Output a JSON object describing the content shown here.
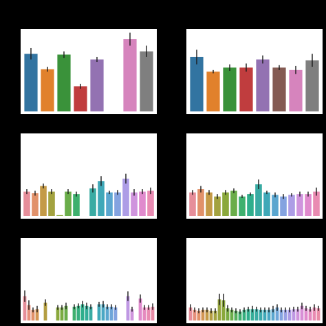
{
  "figure": {
    "background": "#000000",
    "panel_background": "#ffffff",
    "error_bar_color": "#1a1a1a"
  },
  "chart_data": [
    {
      "type": "bar",
      "grid": false,
      "ylim": [
        0,
        1
      ],
      "bars": [
        {
          "value": 0.71,
          "err": 0.07,
          "color": "#3274a1"
        },
        {
          "value": 0.52,
          "err": 0.03,
          "color": "#e1812c"
        },
        {
          "value": 0.7,
          "err": 0.04,
          "color": "#3a923a"
        },
        {
          "value": 0.31,
          "err": 0.03,
          "color": "#c03d3e"
        },
        {
          "value": 0.64,
          "err": 0.03,
          "color": "#9372b2"
        },
        {
          "value": 0.0,
          "err": 0.0,
          "color": "#845b53"
        },
        {
          "value": 0.89,
          "err": 0.08,
          "color": "#d684bd"
        },
        {
          "value": 0.74,
          "err": 0.07,
          "color": "#7f7f7f"
        }
      ]
    },
    {
      "type": "bar",
      "grid": false,
      "ylim": [
        0,
        1
      ],
      "bars": [
        {
          "value": 0.67,
          "err": 0.09,
          "color": "#3274a1"
        },
        {
          "value": 0.49,
          "err": 0.02,
          "color": "#e1812c"
        },
        {
          "value": 0.54,
          "err": 0.04,
          "color": "#3a923a"
        },
        {
          "value": 0.54,
          "err": 0.05,
          "color": "#c03d3e"
        },
        {
          "value": 0.64,
          "err": 0.05,
          "color": "#9372b2"
        },
        {
          "value": 0.54,
          "err": 0.03,
          "color": "#845b53"
        },
        {
          "value": 0.51,
          "err": 0.05,
          "color": "#d684bd"
        },
        {
          "value": 0.63,
          "err": 0.08,
          "color": "#7f7f7f"
        }
      ]
    },
    {
      "type": "bar",
      "grid": false,
      "ylim": [
        0,
        1
      ],
      "bars": [
        {
          "value": 0.3,
          "err": 0.03,
          "color": "#e68e9a"
        },
        {
          "value": 0.28,
          "err": 0.03,
          "color": "#e1916a"
        },
        {
          "value": 0.37,
          "err": 0.03,
          "color": "#c49a47"
        },
        {
          "value": 0.3,
          "err": 0.03,
          "color": "#a3a23f"
        },
        {
          "value": 0.01,
          "err": 0.0,
          "color": "#8aa83c"
        },
        {
          "value": 0.3,
          "err": 0.03,
          "color": "#6aad4a"
        },
        {
          "value": 0.27,
          "err": 0.03,
          "color": "#3eb06e"
        },
        {
          "value": 0.0,
          "err": 0.0,
          "color": "#2fae8c"
        },
        {
          "value": 0.34,
          "err": 0.05,
          "color": "#39aba3"
        },
        {
          "value": 0.43,
          "err": 0.06,
          "color": "#3fa8b8"
        },
        {
          "value": 0.29,
          "err": 0.02,
          "color": "#5aa6cf"
        },
        {
          "value": 0.29,
          "err": 0.03,
          "color": "#84a3e0"
        },
        {
          "value": 0.46,
          "err": 0.06,
          "color": "#ad9de6"
        },
        {
          "value": 0.29,
          "err": 0.04,
          "color": "#cf94dd"
        },
        {
          "value": 0.3,
          "err": 0.03,
          "color": "#e08acd"
        },
        {
          "value": 0.31,
          "err": 0.04,
          "color": "#e98bb2"
        }
      ]
    },
    {
      "type": "bar",
      "grid": false,
      "ylim": [
        0,
        1
      ],
      "bars": [
        {
          "value": 0.29,
          "err": 0.03,
          "color": "#e68e9a"
        },
        {
          "value": 0.33,
          "err": 0.04,
          "color": "#e1916a"
        },
        {
          "value": 0.29,
          "err": 0.03,
          "color": "#c49a47"
        },
        {
          "value": 0.24,
          "err": 0.03,
          "color": "#a3a23f"
        },
        {
          "value": 0.29,
          "err": 0.03,
          "color": "#8aa83c"
        },
        {
          "value": 0.31,
          "err": 0.03,
          "color": "#6aad4a"
        },
        {
          "value": 0.24,
          "err": 0.02,
          "color": "#3eb06e"
        },
        {
          "value": 0.27,
          "err": 0.02,
          "color": "#2fae8c"
        },
        {
          "value": 0.39,
          "err": 0.06,
          "color": "#39aba3"
        },
        {
          "value": 0.29,
          "err": 0.02,
          "color": "#3fa8b8"
        },
        {
          "value": 0.26,
          "err": 0.03,
          "color": "#5aa6cf"
        },
        {
          "value": 0.24,
          "err": 0.03,
          "color": "#84a3e0"
        },
        {
          "value": 0.26,
          "err": 0.02,
          "color": "#ad9de6"
        },
        {
          "value": 0.27,
          "err": 0.03,
          "color": "#cf94dd"
        },
        {
          "value": 0.27,
          "err": 0.03,
          "color": "#e08acd"
        },
        {
          "value": 0.3,
          "err": 0.05,
          "color": "#e98bb2"
        }
      ]
    },
    {
      "type": "bar",
      "grid": false,
      "ylim": [
        0,
        1
      ],
      "bars": [
        {
          "value": 0.3,
          "err": 0.07,
          "color": "#e68e9a"
        },
        {
          "value": 0.19,
          "err": 0.06,
          "color": "#e6907c"
        },
        {
          "value": 0.13,
          "err": 0.03,
          "color": "#e1916a"
        },
        {
          "value": 0.14,
          "err": 0.04,
          "color": "#d39654"
        },
        {
          "value": 0.0,
          "err": 0.0,
          "color": "#c49a47"
        },
        {
          "value": 0.22,
          "err": 0.04,
          "color": "#b49e42"
        },
        {
          "value": 0.0,
          "err": 0.0,
          "color": "#a3a23f"
        },
        {
          "value": 0.0,
          "err": 0.0,
          "color": "#97a53d"
        },
        {
          "value": 0.16,
          "err": 0.03,
          "color": "#8aa83c"
        },
        {
          "value": 0.16,
          "err": 0.03,
          "color": "#79ab42"
        },
        {
          "value": 0.18,
          "err": 0.04,
          "color": "#6aad4a"
        },
        {
          "value": 0.0,
          "err": 0.0,
          "color": "#55af5c"
        },
        {
          "value": 0.17,
          "err": 0.03,
          "color": "#3eb06e"
        },
        {
          "value": 0.18,
          "err": 0.03,
          "color": "#35af7e"
        },
        {
          "value": 0.2,
          "err": 0.04,
          "color": "#2fae8c"
        },
        {
          "value": 0.18,
          "err": 0.04,
          "color": "#33ad98"
        },
        {
          "value": 0.17,
          "err": 0.03,
          "color": "#39aba3"
        },
        {
          "value": 0.0,
          "err": 0.0,
          "color": "#3caaad"
        },
        {
          "value": 0.2,
          "err": 0.03,
          "color": "#3fa8b8"
        },
        {
          "value": 0.2,
          "err": 0.04,
          "color": "#4aa7c4"
        },
        {
          "value": 0.17,
          "err": 0.03,
          "color": "#5aa6cf"
        },
        {
          "value": 0.17,
          "err": 0.03,
          "color": "#6ea5d8"
        },
        {
          "value": 0.16,
          "err": 0.03,
          "color": "#84a3e0"
        },
        {
          "value": 0.0,
          "err": 0.0,
          "color": "#99a0e4"
        },
        {
          "value": 0.0,
          "err": 0.0,
          "color": "#ad9de6"
        },
        {
          "value": 0.3,
          "err": 0.06,
          "color": "#bf98e3"
        },
        {
          "value": 0.14,
          "err": 0.03,
          "color": "#cf94dd"
        },
        {
          "value": 0.0,
          "err": 0.0,
          "color": "#d88fd6"
        },
        {
          "value": 0.27,
          "err": 0.05,
          "color": "#e08acd"
        },
        {
          "value": 0.16,
          "err": 0.03,
          "color": "#e58abf"
        },
        {
          "value": 0.16,
          "err": 0.03,
          "color": "#e98bb2"
        },
        {
          "value": 0.17,
          "err": 0.04,
          "color": "#e98ca6"
        }
      ]
    },
    {
      "type": "bar",
      "grid": false,
      "ylim": [
        0,
        1
      ],
      "bars": [
        {
          "value": 0.16,
          "err": 0.04,
          "color": "#e68e9a"
        },
        {
          "value": 0.13,
          "err": 0.03,
          "color": "#e6907c"
        },
        {
          "value": 0.12,
          "err": 0.03,
          "color": "#e1916a"
        },
        {
          "value": 0.13,
          "err": 0.03,
          "color": "#d39654"
        },
        {
          "value": 0.13,
          "err": 0.03,
          "color": "#c49a47"
        },
        {
          "value": 0.12,
          "err": 0.03,
          "color": "#b49e42"
        },
        {
          "value": 0.12,
          "err": 0.03,
          "color": "#a3a23f"
        },
        {
          "value": 0.26,
          "err": 0.07,
          "color": "#97a53d"
        },
        {
          "value": 0.25,
          "err": 0.08,
          "color": "#8aa83c"
        },
        {
          "value": 0.15,
          "err": 0.04,
          "color": "#79ab42"
        },
        {
          "value": 0.13,
          "err": 0.03,
          "color": "#6aad4a"
        },
        {
          "value": 0.12,
          "err": 0.03,
          "color": "#55af5c"
        },
        {
          "value": 0.11,
          "err": 0.03,
          "color": "#3eb06e"
        },
        {
          "value": 0.13,
          "err": 0.03,
          "color": "#35af7e"
        },
        {
          "value": 0.14,
          "err": 0.03,
          "color": "#2fae8c"
        },
        {
          "value": 0.14,
          "err": 0.04,
          "color": "#33ad98"
        },
        {
          "value": 0.14,
          "err": 0.03,
          "color": "#39aba3"
        },
        {
          "value": 0.13,
          "err": 0.03,
          "color": "#3caaad"
        },
        {
          "value": 0.13,
          "err": 0.03,
          "color": "#3fa8b8"
        },
        {
          "value": 0.13,
          "err": 0.03,
          "color": "#4aa7c4"
        },
        {
          "value": 0.14,
          "err": 0.04,
          "color": "#5aa6cf"
        },
        {
          "value": 0.16,
          "err": 0.04,
          "color": "#6ea5d8"
        },
        {
          "value": 0.13,
          "err": 0.03,
          "color": "#84a3e0"
        },
        {
          "value": 0.13,
          "err": 0.03,
          "color": "#99a0e4"
        },
        {
          "value": 0.13,
          "err": 0.03,
          "color": "#ad9de6"
        },
        {
          "value": 0.14,
          "err": 0.03,
          "color": "#bf98e3"
        },
        {
          "value": 0.14,
          "err": 0.03,
          "color": "#cf94dd"
        },
        {
          "value": 0.18,
          "err": 0.04,
          "color": "#d88fd6"
        },
        {
          "value": 0.15,
          "err": 0.03,
          "color": "#e08acd"
        },
        {
          "value": 0.14,
          "err": 0.03,
          "color": "#e58abf"
        },
        {
          "value": 0.16,
          "err": 0.04,
          "color": "#e98bb2"
        },
        {
          "value": 0.15,
          "err": 0.03,
          "color": "#e98ca6"
        }
      ]
    }
  ]
}
